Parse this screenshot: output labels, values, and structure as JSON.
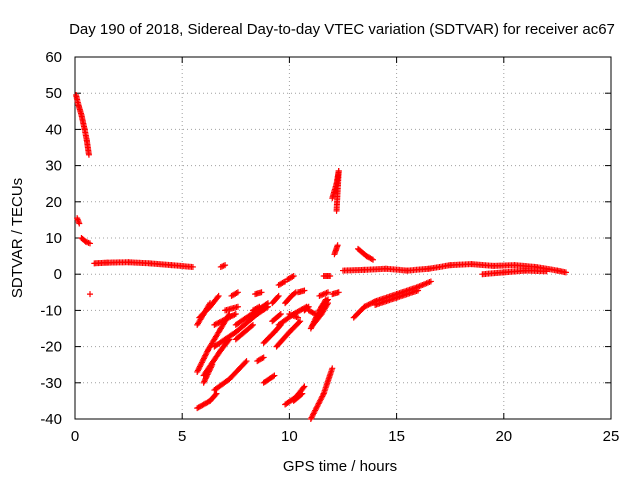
{
  "chart_data": {
    "type": "scatter",
    "title": "Day 190 of 2018, Sidereal Day-to-day VTEC variation (SDTVAR) for receiver ac67",
    "xlabel": "GPS time / hours",
    "ylabel": "SDTVAR / TECUs",
    "xlim": [
      0,
      25
    ],
    "ylim": [
      -40,
      60
    ],
    "xticks": [
      "0",
      "5",
      "10",
      "15",
      "20",
      "25"
    ],
    "yticks": [
      "-40",
      "-30",
      "-20",
      "-10",
      "0",
      "10",
      "20",
      "30",
      "40",
      "50",
      "60"
    ],
    "grid": true,
    "marker": "+",
    "color": "#ff0000",
    "segments": [
      {
        "name": "early-decay",
        "points": [
          [
            0.05,
            49.5
          ],
          [
            0.15,
            47
          ],
          [
            0.3,
            44
          ],
          [
            0.45,
            40
          ],
          [
            0.55,
            37
          ],
          [
            0.65,
            33
          ]
        ]
      },
      {
        "name": "early-15",
        "points": [
          [
            0.1,
            15.5
          ],
          [
            0.2,
            14
          ]
        ]
      },
      {
        "name": "early-9",
        "points": [
          [
            0.3,
            10
          ],
          [
            0.5,
            9
          ],
          [
            0.7,
            8.5
          ]
        ]
      },
      {
        "name": "single-1",
        "points": [
          [
            0.7,
            -5.5
          ]
        ]
      },
      {
        "name": "baseline-a",
        "points": [
          [
            0.9,
            3
          ],
          [
            1.5,
            3.2
          ],
          [
            2.5,
            3.3
          ],
          [
            3.5,
            3
          ],
          [
            4.5,
            2.5
          ],
          [
            5.5,
            2
          ]
        ]
      },
      {
        "name": "isolated-a",
        "points": [
          [
            6.8,
            2
          ],
          [
            7.0,
            2.5
          ]
        ]
      },
      {
        "name": "spike-12",
        "points": [
          [
            12.0,
            21
          ],
          [
            12.1,
            23
          ],
          [
            12.2,
            25
          ],
          [
            12.3,
            28.5
          ],
          [
            12.2,
            17.5
          ]
        ]
      },
      {
        "name": "spike-12b",
        "points": [
          [
            12.1,
            5.5
          ],
          [
            12.25,
            8
          ]
        ]
      },
      {
        "name": "isolated-b",
        "points": [
          [
            11.6,
            -0.5
          ],
          [
            11.9,
            -0.5
          ]
        ]
      },
      {
        "name": "mid-b",
        "points": [
          [
            13.2,
            7
          ],
          [
            13.6,
            5
          ],
          [
            13.9,
            4
          ]
        ]
      },
      {
        "name": "baseline-b",
        "points": [
          [
            12.5,
            1
          ],
          [
            13.5,
            1.2
          ],
          [
            14.5,
            1.5
          ],
          [
            15.5,
            1
          ],
          [
            16.5,
            1.5
          ],
          [
            17.5,
            2.5
          ],
          [
            18.5,
            2.8
          ],
          [
            19.5,
            2.3
          ],
          [
            20.5,
            2.5
          ],
          [
            21.5,
            2
          ],
          [
            22.5,
            1
          ],
          [
            22.9,
            0.5
          ]
        ]
      },
      {
        "name": "baseline-c",
        "points": [
          [
            19.0,
            0
          ],
          [
            20.0,
            0.5
          ],
          [
            21.0,
            1
          ],
          [
            22.0,
            0.8
          ]
        ]
      },
      {
        "name": "ramp-1",
        "points": [
          [
            13.0,
            -12
          ],
          [
            13.5,
            -9
          ],
          [
            14.0,
            -7.5
          ],
          [
            15.0,
            -5.5
          ],
          [
            16.0,
            -3.5
          ],
          [
            16.6,
            -2
          ]
        ]
      },
      {
        "name": "ramp-2",
        "points": [
          [
            14.0,
            -8.5
          ],
          [
            15.0,
            -6.5
          ],
          [
            16.0,
            -4.5
          ]
        ]
      },
      {
        "name": "d1",
        "points": [
          [
            5.7,
            -14
          ],
          [
            6.0,
            -11
          ],
          [
            6.3,
            -8
          ]
        ]
      },
      {
        "name": "d2",
        "points": [
          [
            5.8,
            -12
          ],
          [
            6.3,
            -9
          ],
          [
            6.7,
            -6
          ]
        ]
      },
      {
        "name": "d3",
        "points": [
          [
            5.7,
            -27
          ],
          [
            6.2,
            -21
          ],
          [
            6.8,
            -15
          ],
          [
            7.2,
            -11
          ]
        ]
      },
      {
        "name": "d4",
        "points": [
          [
            5.7,
            -37
          ],
          [
            6.3,
            -35
          ],
          [
            6.6,
            -33
          ]
        ]
      },
      {
        "name": "d5",
        "points": [
          [
            6.0,
            -28
          ],
          [
            6.8,
            -21
          ],
          [
            7.2,
            -18
          ]
        ]
      },
      {
        "name": "d6",
        "points": [
          [
            6.5,
            -20
          ],
          [
            7.5,
            -16
          ],
          [
            8.5,
            -11
          ],
          [
            9.0,
            -9
          ]
        ]
      },
      {
        "name": "d7",
        "points": [
          [
            6.5,
            -32
          ],
          [
            7.2,
            -29
          ],
          [
            8.0,
            -24
          ]
        ]
      },
      {
        "name": "d8",
        "points": [
          [
            7.0,
            -10
          ],
          [
            7.6,
            -9
          ]
        ]
      },
      {
        "name": "d9",
        "points": [
          [
            7.5,
            -14
          ],
          [
            8.5,
            -10
          ],
          [
            9.0,
            -8
          ]
        ]
      },
      {
        "name": "d10",
        "points": [
          [
            7.5,
            -18
          ],
          [
            8.3,
            -14
          ]
        ]
      },
      {
        "name": "d11",
        "points": [
          [
            7.3,
            -6
          ],
          [
            7.6,
            -5
          ]
        ]
      },
      {
        "name": "d12",
        "points": [
          [
            8.3,
            -10
          ],
          [
            8.6,
            -9
          ]
        ]
      },
      {
        "name": "d13",
        "points": [
          [
            8.4,
            -5.5
          ],
          [
            8.7,
            -5
          ]
        ]
      },
      {
        "name": "d14",
        "points": [
          [
            8.5,
            -24
          ],
          [
            8.8,
            -23
          ]
        ]
      },
      {
        "name": "d15",
        "points": [
          [
            8.8,
            -30
          ],
          [
            9.3,
            -28
          ]
        ]
      },
      {
        "name": "d16",
        "points": [
          [
            8.8,
            -19
          ],
          [
            9.3,
            -16
          ],
          [
            9.6,
            -14
          ]
        ]
      },
      {
        "name": "d17",
        "points": [
          [
            9.2,
            -13
          ],
          [
            9.6,
            -11
          ]
        ]
      },
      {
        "name": "d18",
        "points": [
          [
            9.2,
            -8
          ],
          [
            9.5,
            -6
          ]
        ]
      },
      {
        "name": "d19",
        "points": [
          [
            9.5,
            -14
          ],
          [
            10.2,
            -11
          ],
          [
            10.8,
            -9
          ]
        ]
      },
      {
        "name": "d20",
        "points": [
          [
            9.4,
            -20
          ],
          [
            10.0,
            -16
          ],
          [
            10.5,
            -13
          ]
        ]
      },
      {
        "name": "d21",
        "points": [
          [
            9.8,
            -8
          ],
          [
            10.1,
            -6
          ]
        ]
      },
      {
        "name": "d22",
        "points": [
          [
            10.1,
            -6
          ],
          [
            10.3,
            -5
          ]
        ]
      },
      {
        "name": "d23",
        "points": [
          [
            9.5,
            -3
          ],
          [
            9.8,
            -2
          ]
        ]
      },
      {
        "name": "d24",
        "points": [
          [
            10.4,
            -5
          ],
          [
            10.7,
            -4.5
          ]
        ]
      },
      {
        "name": "d25",
        "points": [
          [
            9.9,
            -1.5
          ],
          [
            10.2,
            -0.5
          ]
        ]
      },
      {
        "name": "d26",
        "points": [
          [
            9.8,
            -36
          ],
          [
            10.3,
            -34
          ],
          [
            10.7,
            -31
          ]
        ]
      },
      {
        "name": "d27",
        "points": [
          [
            10.2,
            -35
          ],
          [
            10.6,
            -33
          ]
        ]
      },
      {
        "name": "d28",
        "points": [
          [
            11.0,
            -40
          ],
          [
            11.6,
            -33
          ],
          [
            12.0,
            -26
          ]
        ]
      },
      {
        "name": "d29",
        "points": [
          [
            11.0,
            -15
          ],
          [
            11.4,
            -10
          ],
          [
            11.7,
            -7
          ]
        ]
      },
      {
        "name": "d30",
        "points": [
          [
            11.1,
            -14
          ],
          [
            11.5,
            -11
          ],
          [
            11.8,
            -8
          ]
        ]
      },
      {
        "name": "d31",
        "points": [
          [
            11.4,
            -6
          ],
          [
            11.8,
            -5
          ]
        ]
      },
      {
        "name": "d32",
        "points": [
          [
            10.9,
            -10
          ],
          [
            11.2,
            -11
          ]
        ]
      },
      {
        "name": "d33",
        "points": [
          [
            10.7,
            -10
          ],
          [
            10.9,
            -9
          ]
        ]
      },
      {
        "name": "d34",
        "points": [
          [
            12.0,
            -5.5
          ],
          [
            12.3,
            -5
          ]
        ]
      },
      {
        "name": "d35",
        "points": [
          [
            6.5,
            -14
          ],
          [
            7.5,
            -11
          ]
        ]
      },
      {
        "name": "d36",
        "points": [
          [
            6.0,
            -30
          ],
          [
            6.4,
            -25
          ]
        ]
      },
      {
        "name": "d37",
        "points": [
          [
            10.0,
            -11
          ],
          [
            10.4,
            -12
          ]
        ]
      },
      {
        "name": "d38",
        "points": [
          [
            11.5,
            -9
          ],
          [
            11.8,
            -7
          ]
        ]
      }
    ]
  }
}
